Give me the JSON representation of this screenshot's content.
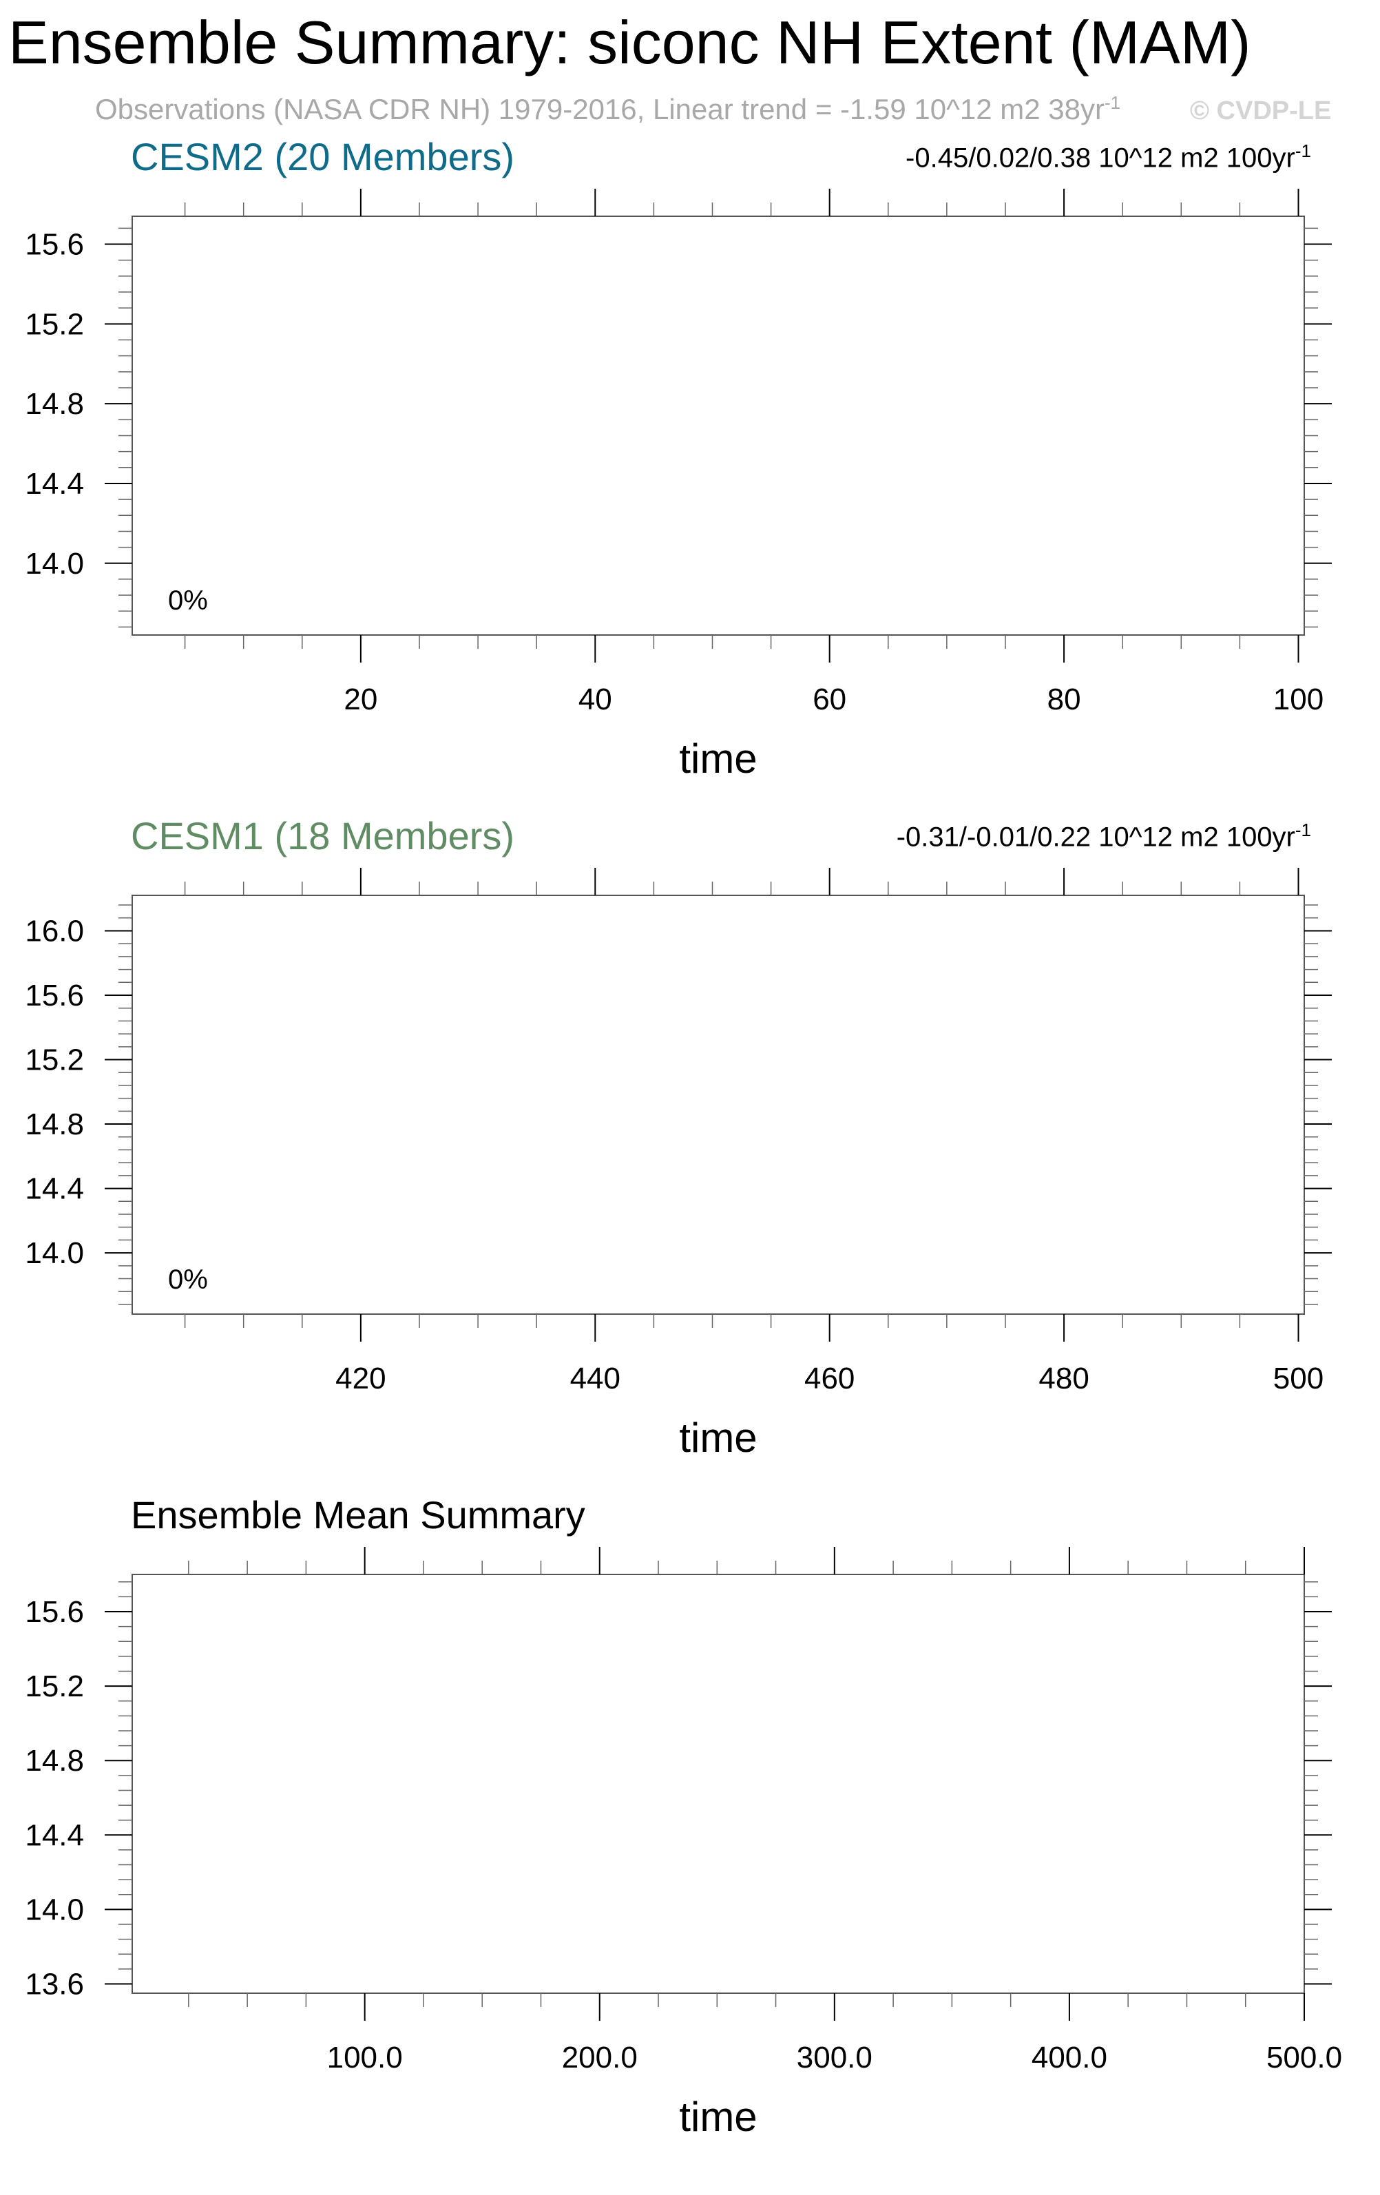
{
  "header": {
    "title": "Ensemble Summary: siconc NH Extent (MAM)",
    "subtitle": "Observations (NASA CDR NH) 1979-2016, Linear trend = -1.59 10^12 m2 38yr",
    "subtitle_sup": "-1",
    "watermark": "© CVDP-LE"
  },
  "panels": [
    {
      "title": "CESM2 (20 Members)",
      "title_color": "#0e6b8a",
      "stats": "-0.45/0.02/0.38 10^12 m2 100yr",
      "stats_sup": "-1",
      "pct_label": "0%"
    },
    {
      "title": "CESM1 (18 Members)",
      "title_color": "#5f8c63",
      "stats": "-0.31/-0.01/0.22 10^12 m2 100yr",
      "stats_sup": "-1",
      "pct_label": "0%"
    },
    {
      "title": "Ensemble Mean Summary",
      "title_color": "#000000",
      "stats": "",
      "stats_sup": "",
      "pct_label": ""
    }
  ],
  "chart_data": [
    {
      "type": "line",
      "title": "CESM2 (20 Members)",
      "xlabel": "time",
      "ylabel": "",
      "xlim": [
        0.5,
        100.5
      ],
      "ylim": [
        13.64,
        15.74
      ],
      "xticks": [
        20,
        40,
        60,
        80,
        100
      ],
      "xtick_labels": [
        "20",
        "40",
        "60",
        "80",
        "100"
      ],
      "yticks": [
        14.0,
        14.4,
        14.8,
        15.2,
        15.6
      ],
      "ytick_labels": [
        "14.0",
        "14.4",
        "14.8",
        "15.2",
        "15.6"
      ],
      "series": []
    },
    {
      "type": "line",
      "title": "CESM1 (18 Members)",
      "xlabel": "time",
      "ylabel": "",
      "xlim": [
        400.5,
        500.5
      ],
      "ylim": [
        13.62,
        16.22
      ],
      "xticks": [
        420,
        440,
        460,
        480,
        500
      ],
      "xtick_labels": [
        "420",
        "440",
        "460",
        "480",
        "500"
      ],
      "yticks": [
        14.0,
        14.4,
        14.8,
        15.2,
        15.6,
        16.0
      ],
      "ytick_labels": [
        "14.0",
        "14.4",
        "14.8",
        "15.2",
        "15.6",
        "16.0"
      ],
      "series": []
    },
    {
      "type": "line",
      "title": "Ensemble Mean Summary",
      "xlabel": "time",
      "ylabel": "",
      "xlim": [
        1,
        500
      ],
      "ylim": [
        13.55,
        15.8
      ],
      "xticks": [
        100,
        200,
        300,
        400,
        500
      ],
      "xtick_labels": [
        "100.0",
        "200.0",
        "300.0",
        "400.0",
        "500.0"
      ],
      "yticks": [
        13.6,
        14.0,
        14.4,
        14.8,
        15.2,
        15.6
      ],
      "ytick_labels": [
        "13.6",
        "14.0",
        "14.4",
        "14.8",
        "15.2",
        "15.6"
      ],
      "series": []
    }
  ]
}
